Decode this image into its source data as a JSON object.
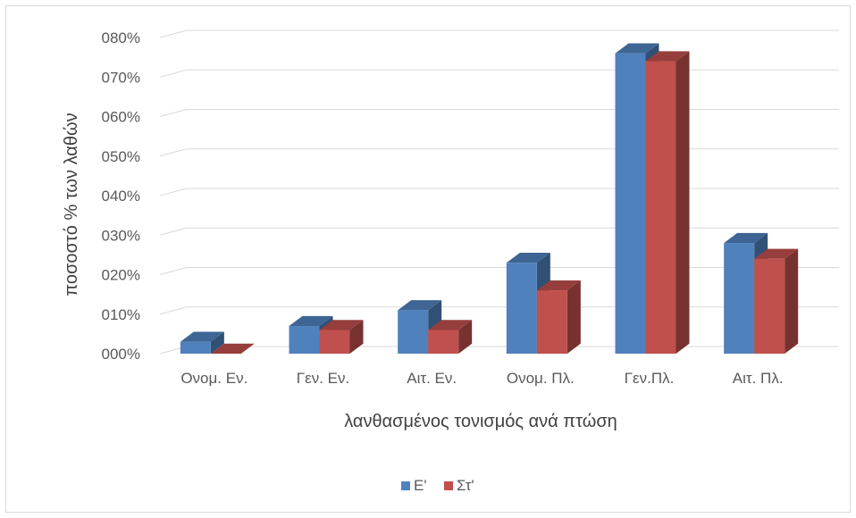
{
  "chart_data": {
    "type": "bar",
    "variant": "clustered-3d-column",
    "categories": [
      "Ονομ. Εν.",
      "Γεν. Εν.",
      "Αιτ. Εν.",
      "Ονομ. Πλ.",
      "Γεν.Πλ.",
      "Αιτ. Πλ."
    ],
    "series": [
      {
        "name": "Ε'",
        "values": [
          0.003,
          0.007,
          0.011,
          0.023,
          0.076,
          0.028
        ],
        "color": "#4f81bd"
      },
      {
        "name": "Στ'",
        "values": [
          0.0,
          0.006,
          0.006,
          0.016,
          0.074,
          0.024
        ],
        "color": "#c0504d"
      }
    ],
    "title": "",
    "xlabel": "λανθασμένος τονισμός ανά πτώση",
    "ylabel": "ποσοστό % των λαθών",
    "ylim": [
      0,
      0.08
    ],
    "yticks": [
      "000%",
      "010%",
      "020%",
      "030%",
      "040%",
      "050%",
      "060%",
      "070%",
      "080%"
    ],
    "grid": true,
    "legend_position": "bottom"
  }
}
